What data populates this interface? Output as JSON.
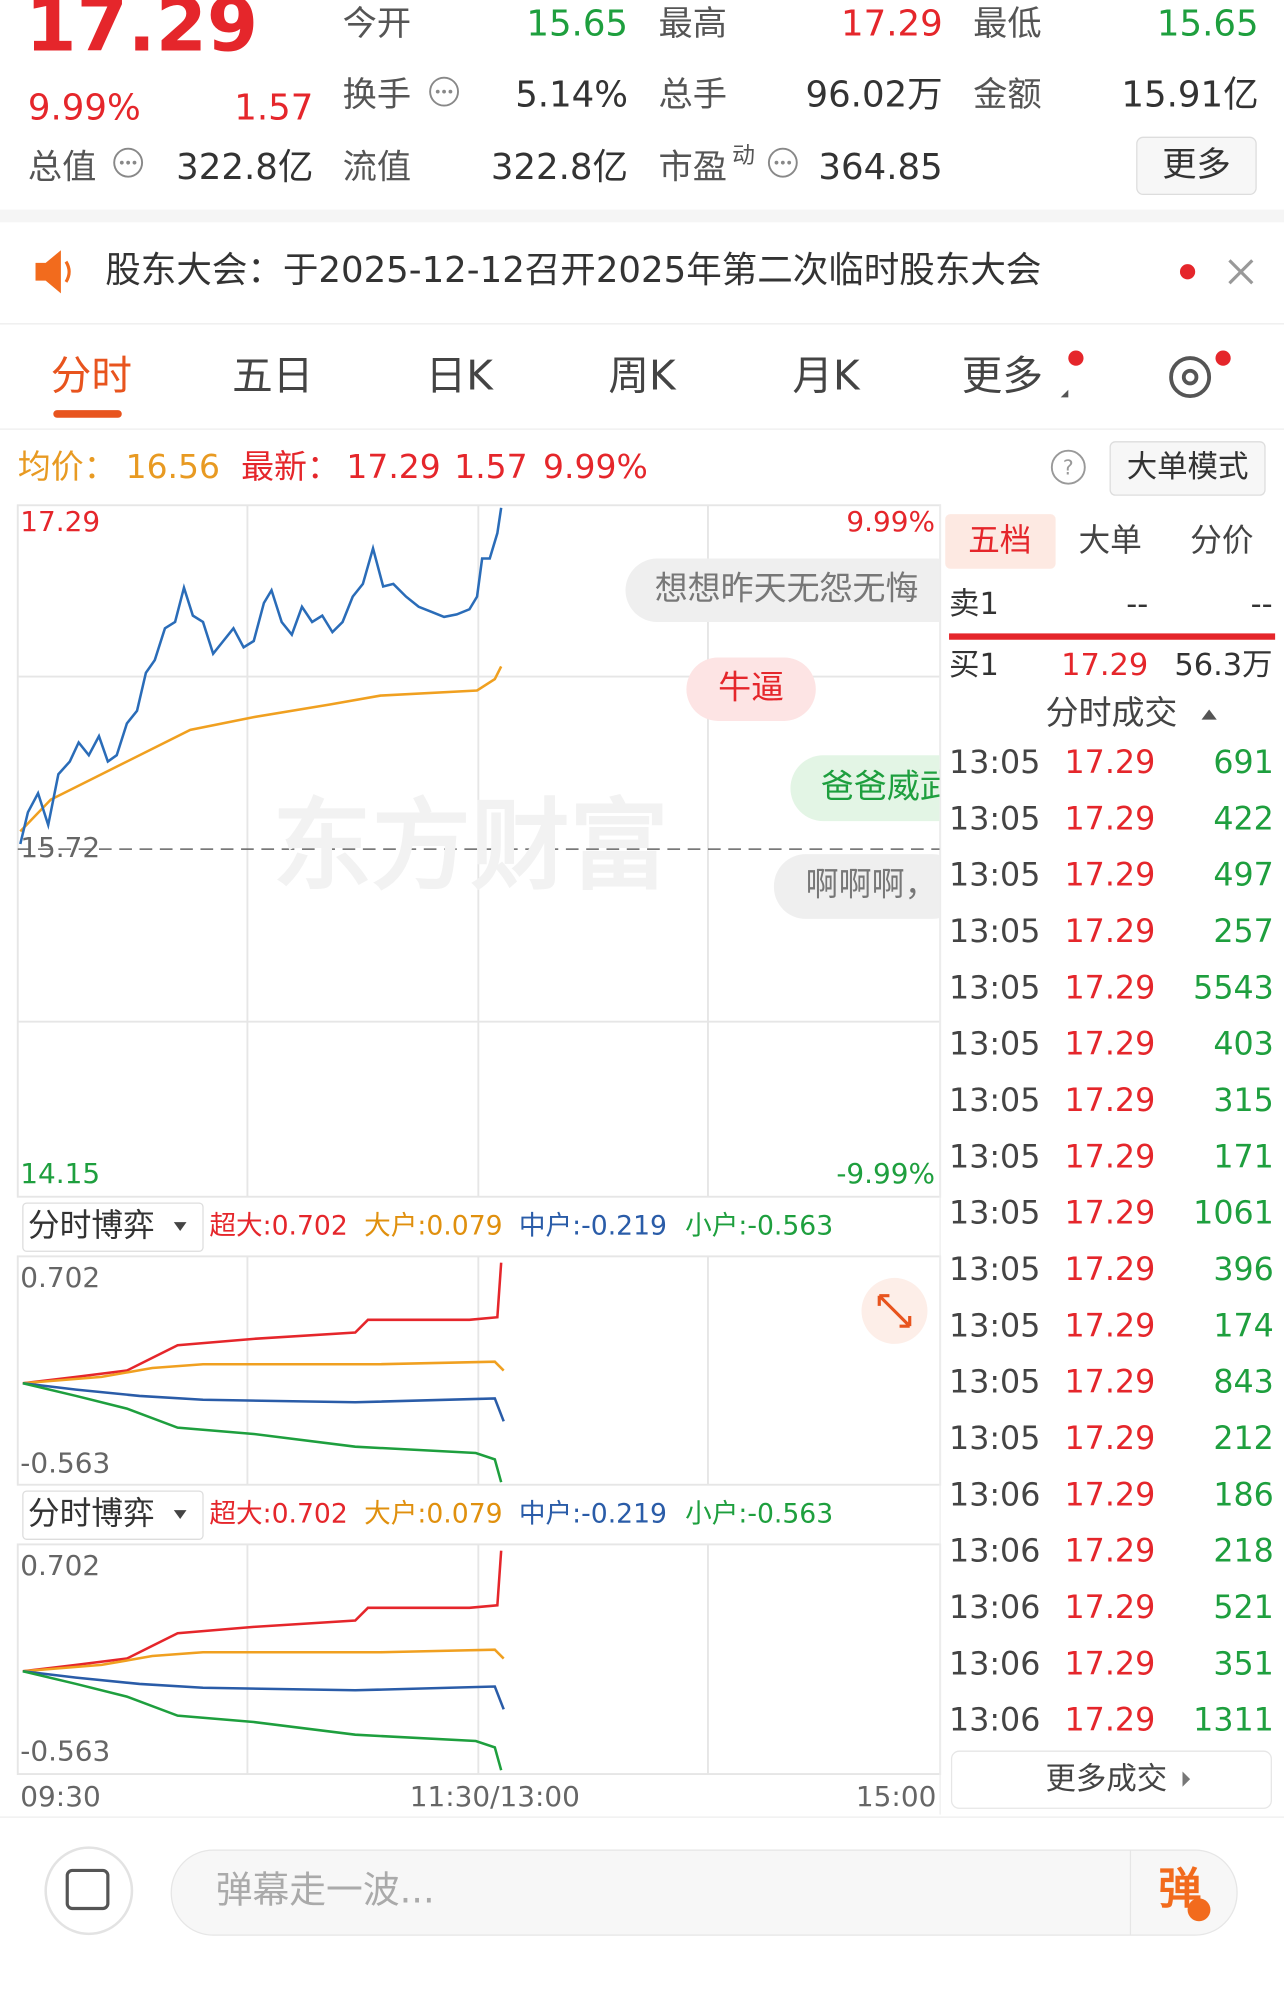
{
  "quote": {
    "price": "17.29",
    "percent": "9.99%",
    "change": "1.57",
    "fields": [
      {
        "label": "今开",
        "value": "15.65",
        "color": "#1e9f3e"
      },
      {
        "label": "最高",
        "value": "17.29",
        "color": "#e5262b"
      },
      {
        "label": "最低",
        "value": "15.65",
        "color": "#1e9f3e"
      },
      {
        "label": "换手",
        "value": "5.14%",
        "color": "#333333"
      },
      {
        "label": "总手",
        "value": "96.02万",
        "color": "#333333"
      },
      {
        "label": "金额",
        "value": "15.91亿",
        "color": "#333333"
      },
      {
        "label": "总值",
        "value": "322.8亿",
        "color": "#333333"
      },
      {
        "label": "流值",
        "value": "322.8亿",
        "color": "#333333"
      },
      {
        "label": "市盈",
        "superscript": "动",
        "value": "364.85",
        "color": "#333333"
      }
    ],
    "more_button": "更多"
  },
  "notice": "股东大会：于2025-12-12召开2025年第二次临时股东大会",
  "tabs": [
    "分时",
    "五日",
    "日K",
    "周K",
    "月K",
    "更多"
  ],
  "info_bar": {
    "avg_label": "均价：",
    "avg": "16.56",
    "latest_label": "最新：",
    "latest": "17.29",
    "change": "1.57",
    "percent": "9.99%",
    "mode_button": "大单模式"
  },
  "chart": {
    "price_top": "17.29",
    "percent_top": "9.99%",
    "prev_close": "15.72",
    "price_bottom": "14.15",
    "percent_bottom": "-9.99%",
    "watermark": "东方财富",
    "danmaku": [
      "想想昨天无怨无悔",
      "牛逼",
      "爸爸威武",
      "啊啊啊，"
    ]
  },
  "flow_panels": [
    {
      "title": "分时博弈",
      "legend": [
        "超大:0.702",
        "大户:0.079",
        "中户:-0.219",
        "小户:-0.563"
      ],
      "top": "0.702",
      "bottom": "-0.563"
    },
    {
      "title": "分时博弈",
      "legend": [
        "超大:0.702",
        "大户:0.079",
        "中户:-0.219",
        "小户:-0.563"
      ],
      "top": "0.702",
      "bottom": "-0.563"
    }
  ],
  "time_axis": [
    "09:30",
    "11:30/13:00",
    "15:00"
  ],
  "order_book": {
    "tabs": [
      "五档",
      "大单",
      "分价"
    ],
    "sell": {
      "label": "卖1",
      "price": "--",
      "volume": "--"
    },
    "buy": {
      "label": "买1",
      "price": "17.29",
      "volume": "56.3万"
    }
  },
  "trades": {
    "title": "分时成交",
    "rows": [
      [
        "13:05",
        "17.29",
        "691"
      ],
      [
        "13:05",
        "17.29",
        "422"
      ],
      [
        "13:05",
        "17.29",
        "497"
      ],
      [
        "13:05",
        "17.29",
        "257"
      ],
      [
        "13:05",
        "17.29",
        "5543"
      ],
      [
        "13:05",
        "17.29",
        "403"
      ],
      [
        "13:05",
        "17.29",
        "315"
      ],
      [
        "13:05",
        "17.29",
        "171"
      ],
      [
        "13:05",
        "17.29",
        "1061"
      ],
      [
        "13:05",
        "17.29",
        "396"
      ],
      [
        "13:05",
        "17.29",
        "174"
      ],
      [
        "13:05",
        "17.29",
        "843"
      ],
      [
        "13:05",
        "17.29",
        "212"
      ],
      [
        "13:06",
        "17.29",
        "186"
      ],
      [
        "13:06",
        "17.29",
        "218"
      ],
      [
        "13:06",
        "17.29",
        "521"
      ],
      [
        "13:06",
        "17.29",
        "351"
      ],
      [
        "13:06",
        "17.29",
        "1311"
      ]
    ],
    "more": "更多成交"
  },
  "input": {
    "placeholder": "弹幕走一波...",
    "button": "弹"
  }
}
